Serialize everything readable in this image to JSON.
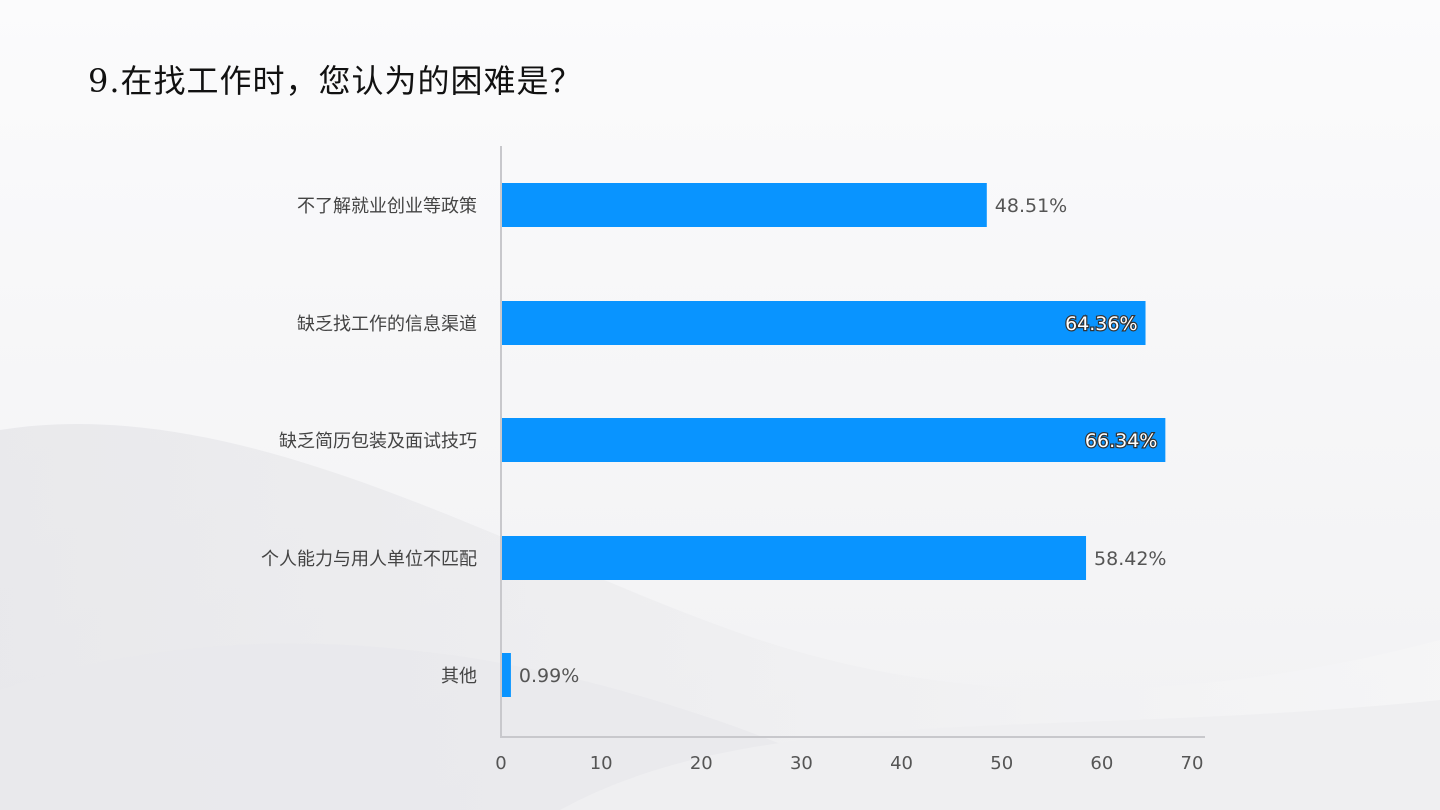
{
  "title": "9.在找工作时，您认为的困难是？",
  "colors": {
    "bar": "#0994ff",
    "axis": "#c8c8cc",
    "background": "#f5f5f6"
  },
  "chart_data": {
    "type": "bar",
    "orientation": "horizontal",
    "categories": [
      "不了解就业创业等政策",
      "缺乏找工作的信息渠道",
      "缺乏简历包装及面试技巧",
      "个人能力与用人单位不匹配",
      "其他"
    ],
    "values": [
      48.51,
      64.36,
      66.34,
      58.42,
      0.99
    ],
    "value_labels": [
      "48.51%",
      "64.36%",
      "66.34%",
      "58.42%",
      "0.99%"
    ],
    "xlim": [
      0,
      70
    ],
    "xticks": [
      0,
      10,
      20,
      30,
      40,
      50,
      60,
      70
    ],
    "grid": false,
    "legend": "none"
  }
}
